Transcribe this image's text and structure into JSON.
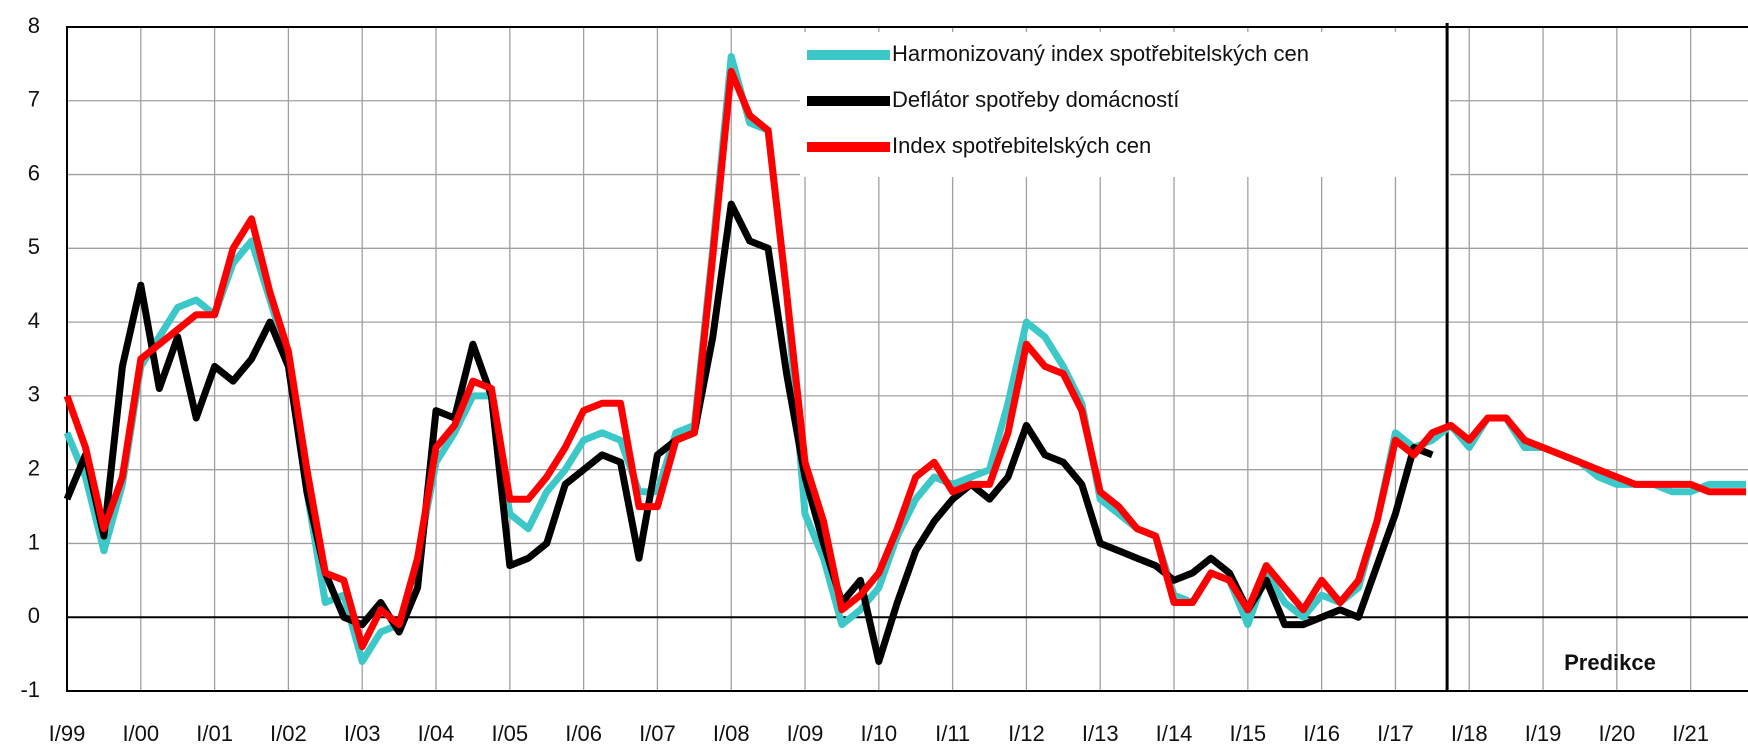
{
  "chart_data": {
    "type": "line",
    "categories": [
      "I/99",
      null,
      null,
      null,
      "I/00",
      null,
      null,
      null,
      "I/01",
      null,
      null,
      null,
      "I/02",
      null,
      null,
      null,
      "I/03",
      null,
      null,
      null,
      "I/04",
      null,
      null,
      null,
      "I/05",
      null,
      null,
      null,
      "I/06",
      null,
      null,
      null,
      "I/07",
      null,
      null,
      null,
      "I/08",
      null,
      null,
      null,
      "I/09",
      null,
      null,
      null,
      "I/10",
      null,
      null,
      null,
      "I/11",
      null,
      null,
      null,
      "I/12",
      null,
      null,
      null,
      "I/13",
      null,
      null,
      null,
      "I/14",
      null,
      null,
      null,
      "I/15",
      null,
      null,
      null,
      "I/16",
      null,
      null,
      null,
      "I/17",
      null,
      null,
      null,
      "I/18",
      null,
      null,
      null,
      "I/19",
      null,
      null,
      null,
      "I/20",
      null,
      null,
      null,
      "I/21",
      null,
      null,
      null
    ],
    "series": [
      {
        "name": "Harmonizovaný index spotřebitelských cen",
        "color": "#3cc8c8",
        "values": [
          2.5,
          1.9,
          0.9,
          1.8,
          3.4,
          3.8,
          4.2,
          4.3,
          4.1,
          4.8,
          5.1,
          4.3,
          3.5,
          1.7,
          0.2,
          0.3,
          -0.6,
          -0.2,
          -0.1,
          0.8,
          2.1,
          2.5,
          3.0,
          3.0,
          1.4,
          1.2,
          1.7,
          2.0,
          2.4,
          2.5,
          2.4,
          1.7,
          1.7,
          2.5,
          2.6,
          5.0,
          7.6,
          6.7,
          6.6,
          4.4,
          1.4,
          0.8,
          -0.1,
          0.1,
          0.4,
          1.1,
          1.6,
          1.9,
          1.8,
          1.9,
          2.0,
          2.9,
          4.0,
          3.8,
          3.4,
          2.9,
          1.6,
          1.4,
          1.2,
          1.1,
          0.3,
          0.2,
          0.6,
          0.5,
          -0.1,
          0.6,
          0.2,
          0.0,
          0.3,
          0.2,
          0.4,
          1.3,
          2.5,
          2.3,
          2.4,
          2.6,
          2.3,
          2.7,
          2.7,
          2.3,
          2.3,
          2.2,
          2.1,
          1.9,
          1.8,
          1.8,
          1.8,
          1.7,
          1.7,
          1.8,
          1.8,
          1.8
        ]
      },
      {
        "name": "Deflátor spotřeby domácností",
        "color": "#000000",
        "values": [
          1.6,
          2.2,
          1.1,
          3.4,
          4.5,
          3.1,
          3.8,
          2.7,
          3.4,
          3.2,
          3.5,
          4.0,
          3.4,
          1.7,
          0.6,
          0.0,
          -0.1,
          0.2,
          -0.2,
          0.4,
          2.8,
          2.7,
          3.7,
          3.0,
          0.7,
          0.8,
          1.0,
          1.8,
          2.0,
          2.2,
          2.1,
          0.8,
          2.2,
          2.4,
          2.5,
          3.8,
          5.6,
          5.1,
          5.0,
          3.3,
          1.9,
          1.0,
          0.2,
          0.5,
          -0.6,
          0.2,
          0.9,
          1.3,
          1.6,
          1.8,
          1.6,
          1.9,
          2.6,
          2.2,
          2.1,
          1.8,
          1.0,
          0.9,
          0.8,
          0.7,
          0.5,
          0.6,
          0.8,
          0.6,
          0.1,
          0.5,
          -0.1,
          -0.1,
          0.0,
          0.1,
          0.0,
          0.7,
          1.4,
          2.3,
          2.2,
          null,
          null,
          null,
          null,
          null,
          null,
          null,
          null,
          null,
          null,
          null,
          null,
          null,
          null,
          null,
          null,
          null
        ]
      },
      {
        "name": "Index spotřebitelských cen",
        "color": "#ff0000",
        "values": [
          3.0,
          2.3,
          1.2,
          1.9,
          3.5,
          3.7,
          3.9,
          4.1,
          4.1,
          5.0,
          5.4,
          4.4,
          3.6,
          2.0,
          0.6,
          0.5,
          -0.4,
          0.1,
          -0.1,
          0.8,
          2.3,
          2.6,
          3.2,
          3.1,
          1.6,
          1.6,
          1.9,
          2.3,
          2.8,
          2.9,
          2.9,
          1.5,
          1.5,
          2.4,
          2.5,
          4.9,
          7.4,
          6.8,
          6.6,
          4.4,
          2.1,
          1.3,
          0.1,
          0.3,
          0.6,
          1.2,
          1.9,
          2.1,
          1.7,
          1.8,
          1.8,
          2.5,
          3.7,
          3.4,
          3.3,
          2.8,
          1.7,
          1.5,
          1.2,
          1.1,
          0.2,
          0.2,
          0.6,
          0.5,
          0.1,
          0.7,
          0.4,
          0.1,
          0.5,
          0.2,
          0.5,
          1.3,
          2.4,
          2.2,
          2.5,
          2.6,
          2.4,
          2.7,
          2.7,
          2.4,
          2.3,
          2.2,
          2.1,
          2.0,
          1.9,
          1.8,
          1.8,
          1.8,
          1.8,
          1.7,
          1.7,
          1.7
        ]
      }
    ],
    "ylim": [
      -1,
      8
    ],
    "yticks": [
      -1,
      0,
      1,
      2,
      3,
      4,
      5,
      6,
      7,
      8
    ],
    "grid": true,
    "legend": "top",
    "annotations": [
      "Predikce"
    ]
  }
}
